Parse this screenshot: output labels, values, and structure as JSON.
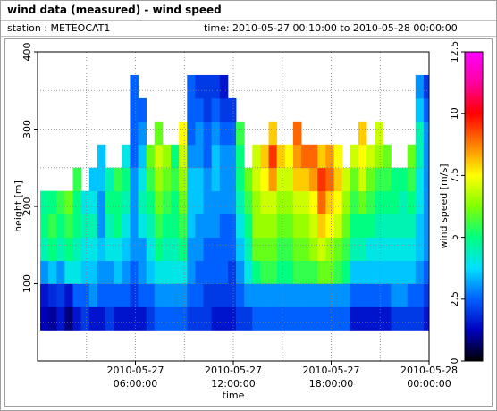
{
  "header": {
    "title": "wind data (measured) - wind speed",
    "station": "station : METEOCAT1",
    "time_range": "time: 2010-05-27 00:10:00 to 2010-05-28 00:00:00"
  },
  "chart_data": {
    "type": "heatmap",
    "xlabel": "time",
    "ylabel": "height [m]",
    "colorbar_label": "wind speed [m/s]",
    "xlim": [
      "2010-05-27 00:00:00",
      "2010-05-28 00:00:00"
    ],
    "xticks": [
      {
        "value": "2010-05-27 06:00:00",
        "label": [
          "2010-05-27",
          "06:00:00"
        ]
      },
      {
        "value": "2010-05-27 12:00:00",
        "label": [
          "2010-05-27",
          "12:00:00"
        ]
      },
      {
        "value": "2010-05-27 18:00:00",
        "label": [
          "2010-05-27",
          "18:00:00"
        ]
      },
      {
        "value": "2010-05-28 00:00:00",
        "label": [
          "2010-05-28",
          "00:00:00"
        ]
      }
    ],
    "minor_xticks": [
      "2010-05-27 03:00:00",
      "2010-05-27 06:00:00",
      "2010-05-27 09:00:00",
      "2010-05-27 12:00:00",
      "2010-05-27 15:00:00",
      "2010-05-27 18:00:00",
      "2010-05-27 21:00:00"
    ],
    "ylim": [
      0,
      400
    ],
    "yticks": [
      100,
      200,
      300,
      400
    ],
    "minor_yticks": [
      50,
      100,
      150,
      200,
      250,
      300,
      350
    ],
    "zlim": [
      0,
      12.5
    ],
    "zticks": [
      0,
      2.5,
      5,
      7.5,
      10,
      12.5
    ],
    "colormap": [
      "#000000",
      "#0000c0",
      "#0060ff",
      "#00e0ff",
      "#00ff80",
      "#80ff00",
      "#ffff00",
      "#ff8000",
      "#ff0000",
      "#ff00a0",
      "#ff00ff"
    ],
    "x": [
      "2010-05-27 00:10:00",
      "2010-05-27 00:40:00",
      "2010-05-27 01:10:00",
      "2010-05-27 01:40:00",
      "2010-05-27 02:10:00",
      "2010-05-27 02:40:00",
      "2010-05-27 03:10:00",
      "2010-05-27 03:40:00",
      "2010-05-27 04:10:00",
      "2010-05-27 04:40:00",
      "2010-05-27 05:10:00",
      "2010-05-27 05:40:00",
      "2010-05-27 06:10:00",
      "2010-05-27 06:40:00",
      "2010-05-27 07:10:00",
      "2010-05-27 07:40:00",
      "2010-05-27 08:10:00",
      "2010-05-27 08:40:00",
      "2010-05-27 09:10:00",
      "2010-05-27 09:40:00",
      "2010-05-27 10:10:00",
      "2010-05-27 10:40:00",
      "2010-05-27 11:10:00",
      "2010-05-27 11:40:00",
      "2010-05-27 12:10:00",
      "2010-05-27 12:40:00",
      "2010-05-27 13:10:00",
      "2010-05-27 13:40:00",
      "2010-05-27 14:10:00",
      "2010-05-27 14:40:00",
      "2010-05-27 15:10:00",
      "2010-05-27 15:40:00",
      "2010-05-27 16:10:00",
      "2010-05-27 16:40:00",
      "2010-05-27 17:10:00",
      "2010-05-27 17:40:00",
      "2010-05-27 18:10:00",
      "2010-05-27 18:40:00",
      "2010-05-27 19:10:00",
      "2010-05-27 19:40:00",
      "2010-05-27 20:10:00",
      "2010-05-27 20:40:00",
      "2010-05-27 21:10:00",
      "2010-05-27 21:40:00",
      "2010-05-27 22:10:00",
      "2010-05-27 22:40:00",
      "2010-05-27 23:10:00",
      "2010-05-27 23:40:00"
    ],
    "y": [
      40,
      70,
      100,
      130,
      160,
      190,
      220,
      250,
      280,
      310,
      340
    ],
    "z": [
      [
        1.2,
        1.5,
        3,
        4.5,
        5,
        4.8,
        null,
        null,
        null,
        null,
        null
      ],
      [
        1.0,
        1.8,
        3.5,
        5,
        5.5,
        5,
        null,
        null,
        null,
        null,
        null
      ],
      [
        1.5,
        2,
        3,
        4.5,
        5,
        5.5,
        null,
        null,
        null,
        null,
        null
      ],
      [
        0.8,
        1.5,
        4,
        5,
        5.5,
        6,
        null,
        null,
        null,
        null,
        null
      ],
      [
        1.5,
        2.5,
        4,
        4.5,
        5,
        5,
        5.5,
        null,
        null,
        null,
        null
      ],
      [
        2,
        2.5,
        3.5,
        4,
        4.5,
        4,
        null,
        null,
        null,
        null,
        null
      ],
      [
        1.5,
        3,
        3.5,
        4,
        4.5,
        4,
        3.5,
        null,
        null,
        null,
        null
      ],
      [
        1.5,
        2.5,
        3,
        3.5,
        3,
        3,
        3.5,
        3.5,
        null,
        null,
        null
      ],
      [
        2,
        2.5,
        3,
        4,
        4.5,
        5,
        4.5,
        null,
        null,
        null,
        null
      ],
      [
        1.5,
        2.5,
        3.5,
        4,
        5,
        5,
        5.5,
        null,
        null,
        null,
        null
      ],
      [
        1.5,
        2.5,
        3,
        3.5,
        4,
        4.5,
        5,
        4,
        null,
        null,
        null
      ],
      [
        1.5,
        2,
        2.5,
        3,
        3,
        3,
        3,
        2.5,
        2.5,
        2.5,
        2.5
      ],
      [
        1.5,
        2.5,
        3,
        3,
        4,
        4.5,
        4,
        3.5,
        3,
        2.5,
        null
      ],
      [
        2,
        2.5,
        3.5,
        4,
        4.5,
        5,
        5.5,
        6,
        null,
        null,
        null
      ],
      [
        2.5,
        3,
        4,
        5,
        5.5,
        6,
        6.5,
        7,
        6,
        null,
        null
      ],
      [
        2.5,
        3,
        4,
        4.5,
        5,
        5.5,
        6,
        6.5,
        null,
        null,
        null
      ],
      [
        2.5,
        3,
        4,
        4.5,
        5,
        5,
        5.5,
        5,
        null,
        null,
        null
      ],
      [
        2.5,
        3,
        4,
        5,
        5.5,
        6,
        6.5,
        7,
        7.5,
        null,
        null
      ],
      [
        2,
        2.5,
        3,
        3,
        3.5,
        3.5,
        3.5,
        3,
        2.5,
        2.5,
        2.5
      ],
      [
        2,
        2.5,
        2.5,
        3,
        3,
        3.5,
        3.5,
        3,
        3,
        2.5,
        2
      ],
      [
        2,
        2,
        2.5,
        2.5,
        3,
        3,
        3,
        2.5,
        2.5,
        2,
        2
      ],
      [
        1.5,
        2,
        2.5,
        2.5,
        3,
        3,
        3.5,
        3.5,
        3,
        2.5,
        2
      ],
      [
        1.5,
        2,
        2.5,
        2.5,
        2.5,
        3,
        3,
        3,
        2.5,
        2,
        1.5
      ],
      [
        1.5,
        2,
        2,
        2.5,
        2.5,
        3,
        3,
        3,
        2.5,
        2,
        null
      ],
      [
        2,
        2.5,
        3,
        3.5,
        4,
        4.5,
        5,
        5,
        5.5,
        null,
        null
      ],
      [
        2,
        3,
        4,
        4.5,
        5,
        5.5,
        6,
        null,
        null,
        null,
        null
      ],
      [
        2.5,
        3,
        5,
        6,
        6.5,
        6.5,
        7,
        7,
        null,
        null,
        null
      ],
      [
        2.5,
        3,
        5.5,
        6,
        6.5,
        7,
        7.5,
        8,
        null,
        null,
        null
      ],
      [
        2.5,
        3,
        5.5,
        6,
        6.5,
        7,
        8.5,
        9.5,
        8,
        null,
        null
      ],
      [
        2.5,
        3,
        5,
        5.5,
        6,
        6.5,
        7,
        8,
        null,
        null,
        null
      ],
      [
        2.5,
        3,
        5,
        5.5,
        6,
        6.5,
        7,
        7.5,
        null,
        null,
        null
      ],
      [
        2.5,
        3,
        5.5,
        6,
        6.5,
        7,
        8,
        8.5,
        9,
        null,
        null
      ],
      [
        2.5,
        3,
        5.5,
        6,
        6.5,
        7,
        8,
        9,
        null,
        null,
        null
      ],
      [
        2.5,
        3,
        5.5,
        6.5,
        7,
        7.5,
        8.5,
        9,
        null,
        null,
        null
      ],
      [
        2.5,
        3,
        6,
        7,
        8,
        9,
        9.5,
        8,
        null,
        null,
        null
      ],
      [
        2.5,
        3,
        6,
        6.5,
        7.5,
        8,
        9,
        8.5,
        null,
        null,
        null
      ],
      [
        2.5,
        3,
        5.5,
        6,
        7,
        7.5,
        8,
        7.5,
        null,
        null,
        null
      ],
      [
        2.5,
        3,
        5,
        5.5,
        6,
        6.5,
        7,
        null,
        null,
        null,
        null
      ],
      [
        1.5,
        2.5,
        3.5,
        4.5,
        5,
        5.5,
        6,
        7,
        null,
        null,
        null
      ],
      [
        1.5,
        2.5,
        3.5,
        4.5,
        5,
        6,
        7,
        7.5,
        8,
        null,
        null
      ],
      [
        1.5,
        2.5,
        3.5,
        4,
        5,
        5.5,
        6,
        7,
        null,
        null,
        null
      ],
      [
        1.5,
        2.5,
        3.5,
        4,
        4.5,
        5,
        5.5,
        6.5,
        7,
        null,
        null
      ],
      [
        1.5,
        2.5,
        3.5,
        4,
        4.5,
        5,
        5.5,
        6,
        null,
        null,
        null
      ],
      [
        2,
        3,
        3.5,
        4,
        4.5,
        5,
        5,
        null,
        null,
        null,
        null
      ],
      [
        2,
        3,
        3.5,
        4,
        4.5,
        4.5,
        5,
        null,
        null,
        null,
        null
      ],
      [
        2,
        2.5,
        3.5,
        4,
        4.5,
        5,
        5.5,
        6,
        null,
        null,
        null
      ],
      [
        2,
        2.5,
        3,
        3.5,
        3.5,
        4,
        4,
        4.5,
        4.5,
        3.5,
        3
      ],
      [
        1.5,
        2,
        2.5,
        3,
        3,
        3,
        3,
        3,
        3,
        2.5,
        2
      ]
    ]
  }
}
